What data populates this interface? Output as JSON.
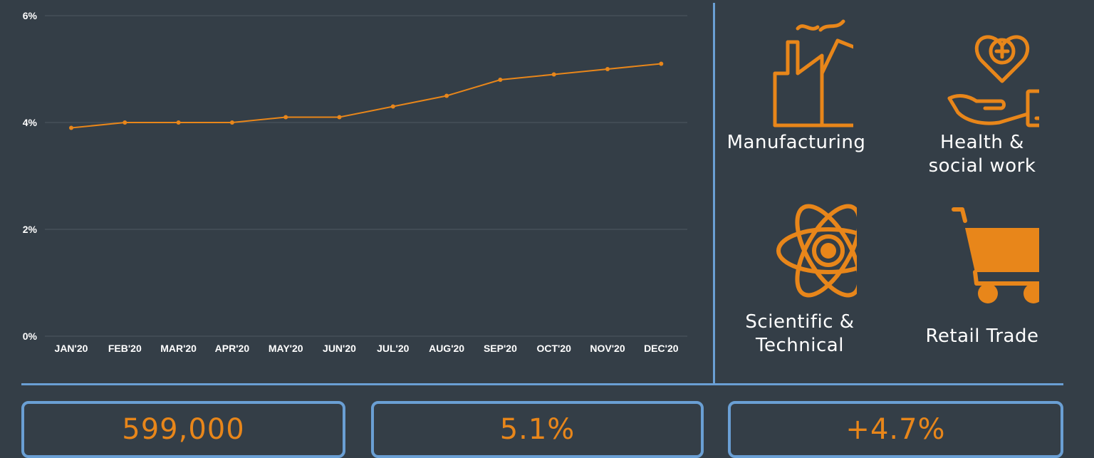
{
  "chart_data": {
    "type": "line",
    "categories": [
      "JAN'20",
      "FEB'20",
      "MAR'20",
      "APR'20",
      "MAY'20",
      "JUN'20",
      "JUL'20",
      "AUG'20",
      "SEP'20",
      "OCT'20",
      "NOV'20",
      "DEC'20"
    ],
    "series": [
      {
        "values": [
          3.9,
          4.0,
          4.0,
          4.0,
          4.1,
          4.1,
          4.3,
          4.5,
          4.8,
          4.9,
          5.0,
          5.1
        ]
      }
    ],
    "yticks": [
      "0%",
      "2%",
      "4%",
      "6%"
    ],
    "ylim": [
      0,
      6
    ],
    "grid": true,
    "line_color": "#e8861a",
    "title": "",
    "xlabel": "",
    "ylabel": ""
  },
  "sectors": [
    {
      "label": "Manufacturing",
      "icon": "factory-icon"
    },
    {
      "label": "Health & social work",
      "icon": "heart-hand-icon"
    },
    {
      "label": "Scientific & Technical",
      "icon": "atom-icon"
    },
    {
      "label": "Retail Trade",
      "icon": "shopping-cart-icon"
    }
  ],
  "stats": [
    {
      "value": "599,000"
    },
    {
      "value": "5.1%"
    },
    {
      "value": "+4.7%"
    }
  ],
  "colors": {
    "background": "#343e47",
    "accent": "#e8861a",
    "divider": "#6a9fd4"
  }
}
